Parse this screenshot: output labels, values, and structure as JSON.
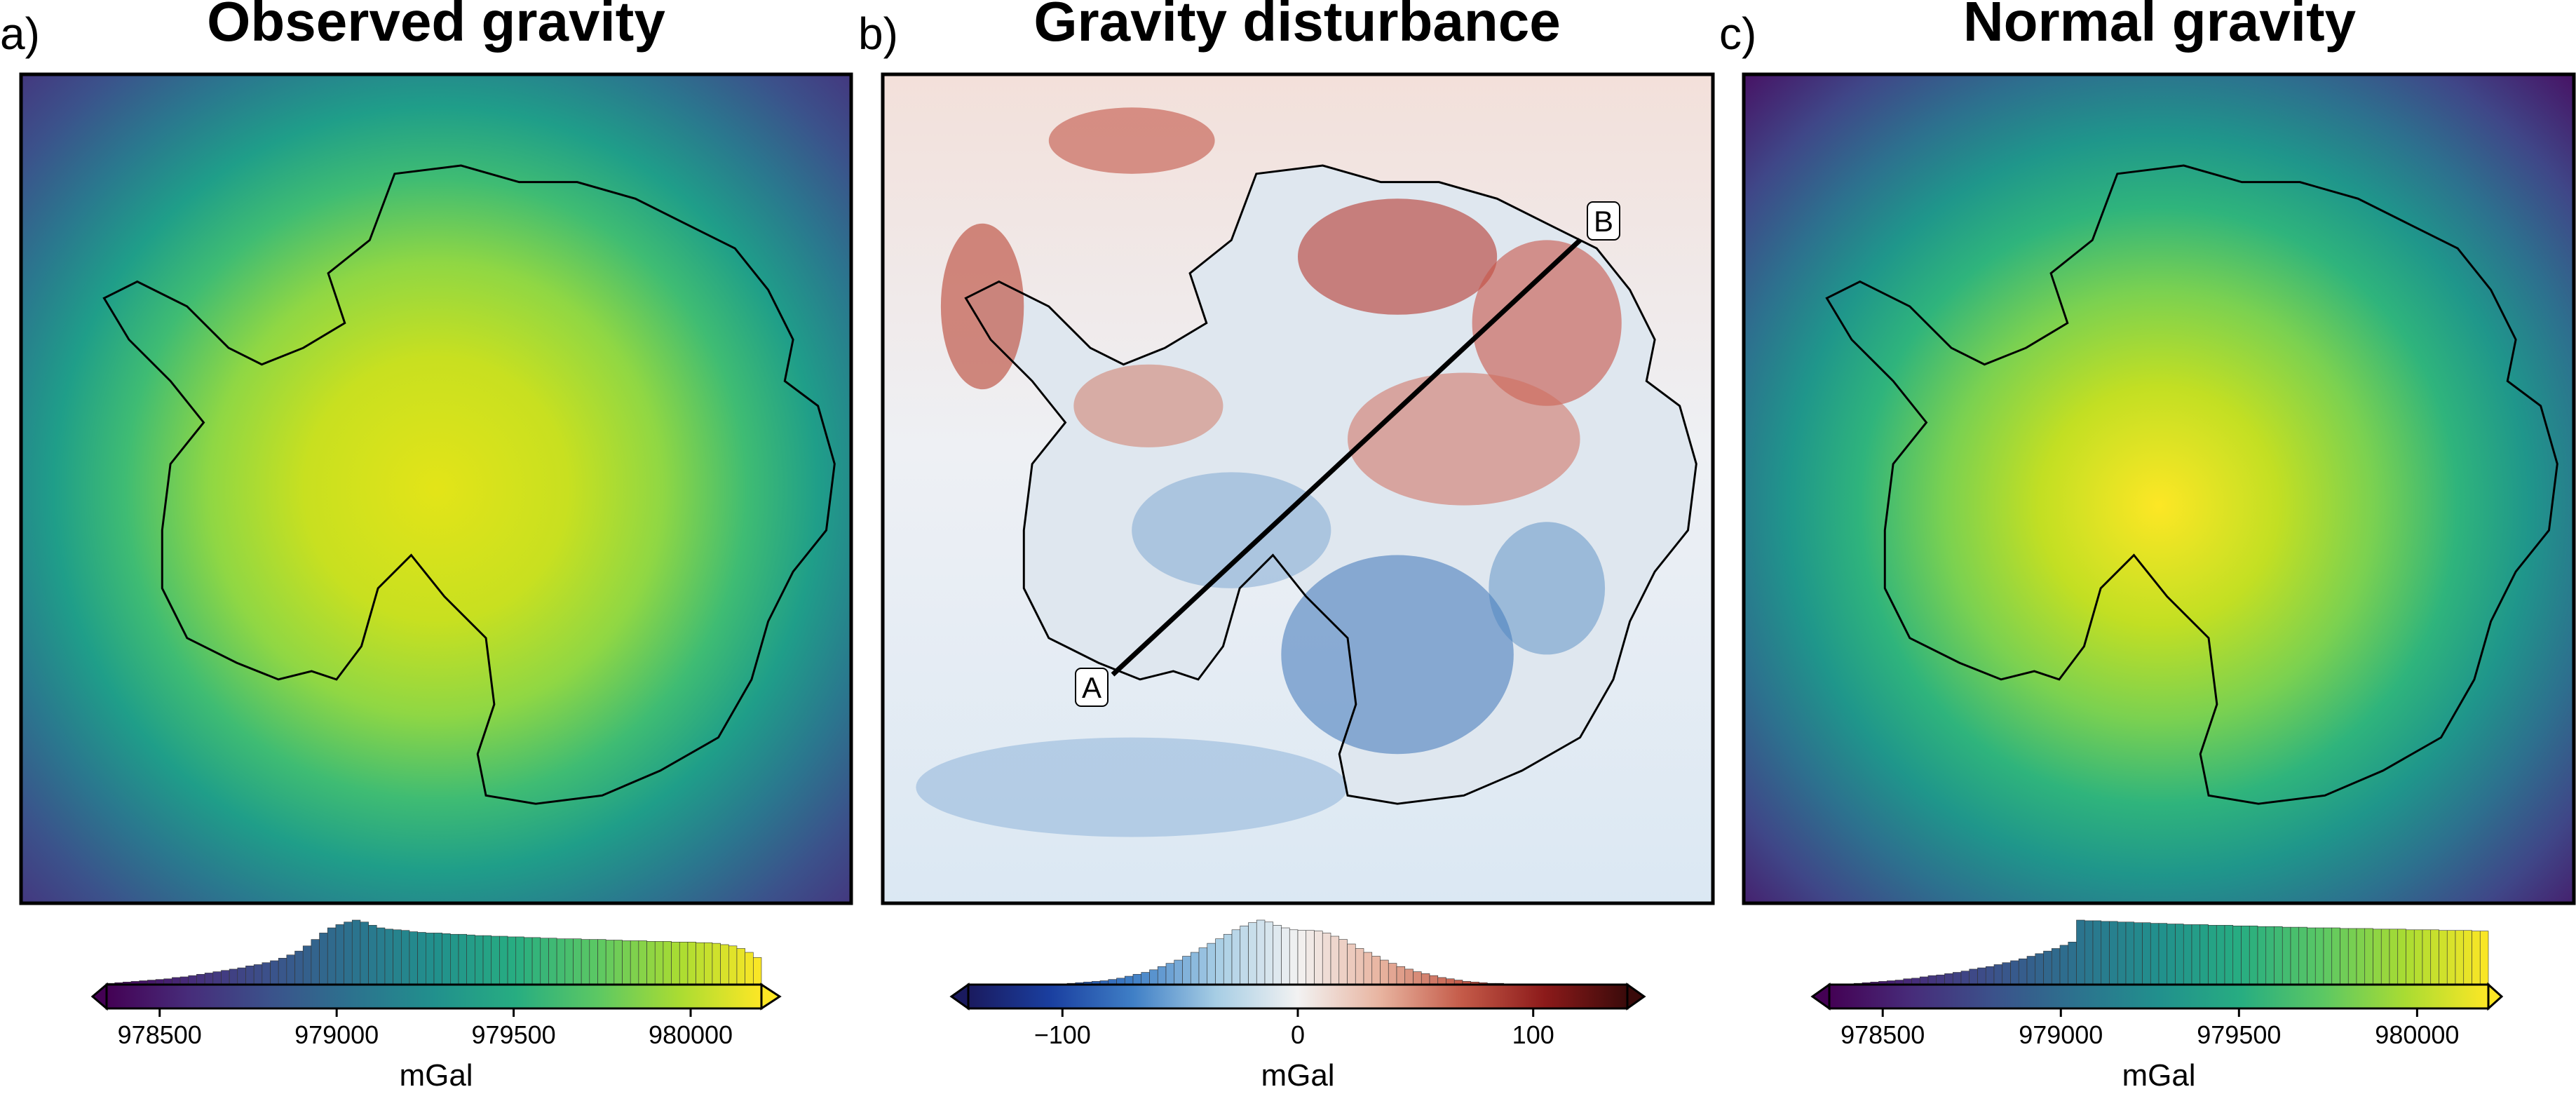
{
  "colors": {
    "viridis": [
      "#440154",
      "#472c7a",
      "#3b528b",
      "#2c728e",
      "#21908d",
      "#27ad81",
      "#5cc863",
      "#aadc32",
      "#fde725"
    ],
    "rdbu": [
      "#1a1a5e",
      "#1a3fa0",
      "#3f7fc6",
      "#a6cde4",
      "#f2f2f2",
      "#e8b4a0",
      "#c45a48",
      "#8c1a1a",
      "#3a0a0a"
    ],
    "frame": "#000000"
  },
  "chart_data": [
    {
      "type": "heatmap",
      "panel_label": "a)",
      "title": "Observed gravity",
      "colormap": "viridis",
      "colorbar": {
        "label": "mGal",
        "min": 978350,
        "max": 980200,
        "ticks": [
          978500,
          979000,
          979500,
          980000
        ],
        "tick_labels": [
          "978500",
          "979000",
          "979500",
          "980000"
        ]
      },
      "histogram": [
        0.02,
        0.03,
        0.04,
        0.05,
        0.06,
        0.07,
        0.08,
        0.09,
        0.11,
        0.12,
        0.14,
        0.16,
        0.18,
        0.2,
        0.22,
        0.24,
        0.26,
        0.29,
        0.31,
        0.34,
        0.37,
        0.41,
        0.46,
        0.52,
        0.6,
        0.7,
        0.8,
        0.88,
        0.93,
        0.97,
        1.0,
        0.97,
        0.92,
        0.88,
        0.86,
        0.85,
        0.84,
        0.82,
        0.81,
        0.8,
        0.8,
        0.79,
        0.78,
        0.78,
        0.77,
        0.76,
        0.76,
        0.75,
        0.75,
        0.74,
        0.74,
        0.73,
        0.73,
        0.72,
        0.72,
        0.71,
        0.71,
        0.71,
        0.7,
        0.7,
        0.7,
        0.69,
        0.69,
        0.68,
        0.68,
        0.68,
        0.67,
        0.67,
        0.67,
        0.66,
        0.66,
        0.66,
        0.65,
        0.65,
        0.64,
        0.62,
        0.6,
        0.56,
        0.5,
        0.42
      ]
    },
    {
      "type": "heatmap",
      "panel_label": "b)",
      "title": "Gravity disturbance",
      "colormap": "rdbu",
      "colorbar": {
        "label": "mGal",
        "min": -140,
        "max": 140,
        "ticks": [
          -100,
          0,
          100
        ],
        "tick_labels": [
          "−100",
          "0",
          "100"
        ]
      },
      "histogram": [
        0.0,
        0.0,
        0.0,
        0.0,
        0.0,
        0.0,
        0.0,
        0.0,
        0.0,
        0.01,
        0.01,
        0.01,
        0.02,
        0.03,
        0.04,
        0.05,
        0.06,
        0.08,
        0.1,
        0.13,
        0.16,
        0.19,
        0.23,
        0.28,
        0.33,
        0.38,
        0.44,
        0.5,
        0.57,
        0.64,
        0.71,
        0.78,
        0.85,
        0.91,
        0.96,
        1.0,
        0.97,
        0.92,
        0.88,
        0.85,
        0.84,
        0.84,
        0.83,
        0.8,
        0.75,
        0.7,
        0.63,
        0.56,
        0.5,
        0.44,
        0.38,
        0.33,
        0.28,
        0.24,
        0.2,
        0.17,
        0.14,
        0.11,
        0.09,
        0.07,
        0.05,
        0.04,
        0.03,
        0.02,
        0.02,
        0.01,
        0.01,
        0.01,
        0.0,
        0.0,
        0.0,
        0.0,
        0.0,
        0.0,
        0.0,
        0.0,
        0.0,
        0.0,
        0.0,
        0.0
      ],
      "profile": {
        "start": {
          "label": "A"
        },
        "end": {
          "label": "B"
        }
      }
    },
    {
      "type": "heatmap",
      "panel_label": "c)",
      "title": "Normal gravity",
      "colormap": "viridis",
      "colorbar": {
        "label": "mGal",
        "min": 978350,
        "max": 980200,
        "ticks": [
          978500,
          979000,
          979500,
          980000
        ],
        "tick_labels": [
          "978500",
          "979000",
          "979500",
          "980000"
        ]
      },
      "histogram": [
        0.0,
        0.01,
        0.01,
        0.02,
        0.03,
        0.04,
        0.05,
        0.06,
        0.07,
        0.09,
        0.1,
        0.12,
        0.14,
        0.15,
        0.17,
        0.19,
        0.21,
        0.24,
        0.26,
        0.28,
        0.31,
        0.34,
        0.37,
        0.4,
        0.44,
        0.48,
        0.52,
        0.56,
        0.61,
        0.66,
        1.0,
        0.99,
        0.99,
        0.98,
        0.98,
        0.97,
        0.97,
        0.96,
        0.96,
        0.95,
        0.95,
        0.94,
        0.94,
        0.93,
        0.93,
        0.93,
        0.92,
        0.92,
        0.92,
        0.91,
        0.91,
        0.91,
        0.9,
        0.9,
        0.9,
        0.89,
        0.89,
        0.89,
        0.88,
        0.88,
        0.88,
        0.88,
        0.87,
        0.87,
        0.87,
        0.87,
        0.86,
        0.86,
        0.86,
        0.86,
        0.85,
        0.85,
        0.85,
        0.85,
        0.84,
        0.84,
        0.84,
        0.84,
        0.83,
        0.83
      ]
    }
  ]
}
